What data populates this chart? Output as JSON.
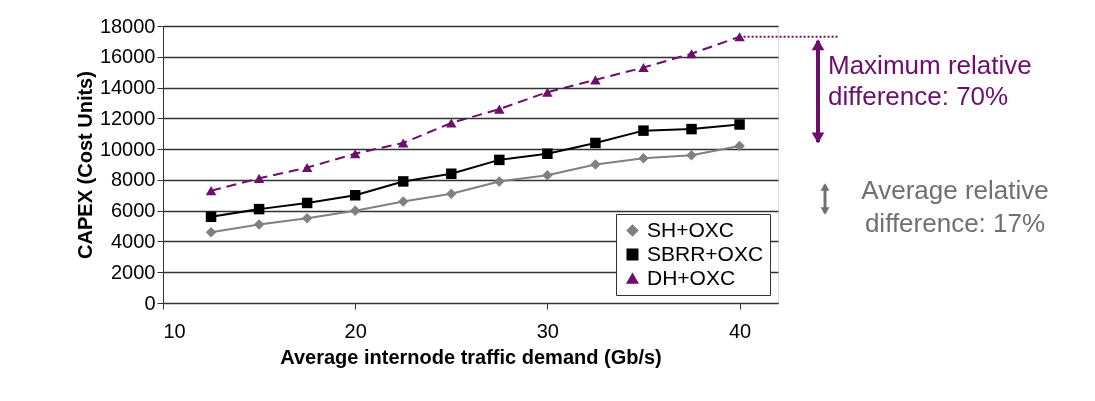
{
  "chart_data": {
    "type": "line",
    "xlabel": "Average internode traffic demand (Gb/s)",
    "ylabel": "CAPEX (Cost Units)",
    "x": [
      12.5,
      15,
      17.5,
      20,
      22.5,
      25,
      27.5,
      30,
      32.5,
      35,
      37.5,
      40
    ],
    "series": [
      {
        "name": "SH+OXC",
        "color": "#808080",
        "marker": "diamond",
        "line_style": "solid",
        "values": [
          4600,
          5100,
          5500,
          6000,
          6600,
          7100,
          7900,
          8300,
          9000,
          9400,
          9600,
          10200
        ]
      },
      {
        "name": "SBRR+OXC",
        "color": "#000000",
        "marker": "square",
        "line_style": "solid",
        "values": [
          5600,
          6100,
          6500,
          7000,
          7900,
          8400,
          9300,
          9700,
          10400,
          11200,
          11300,
          11600
        ]
      },
      {
        "name": "DH+OXC",
        "color": "#6b0f6b",
        "marker": "triangle",
        "line_style": "dashed",
        "values": [
          7300,
          8100,
          8800,
          9700,
          10400,
          11700,
          12600,
          13700,
          14500,
          15300,
          16200,
          17300
        ]
      }
    ],
    "xlim": [
      10,
      42
    ],
    "xticks": [
      10,
      20,
      30,
      40
    ],
    "ylim": [
      0,
      18000
    ],
    "yticks": [
      0,
      2000,
      4000,
      6000,
      8000,
      10000,
      12000,
      14000,
      16000,
      18000
    ],
    "grid": "y",
    "legend": "bottom right",
    "annotations": [
      {
        "text": "Maximum relative\ndifference: 70%",
        "x": 40,
        "y": 17300
      },
      "Average relative\ndifference: 17%"
    ]
  }
}
